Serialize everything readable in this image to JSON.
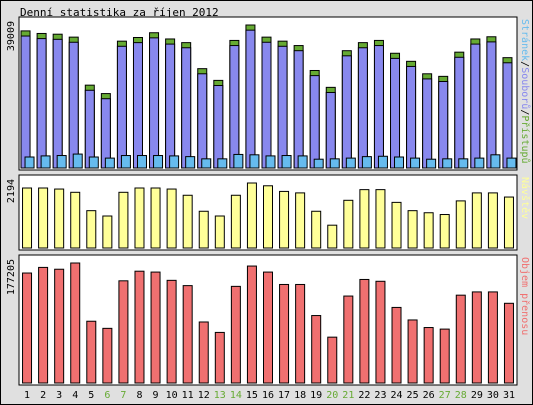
{
  "title": "Denní statistika za říjen 2012",
  "colors": {
    "pristupu": "#66aa33",
    "souboru": "#8888ee",
    "stranek": "#66bbee",
    "navstev": "#ffff99",
    "prenos": "#f07070",
    "weekend_label": "#66aa33",
    "weekday_label": "#000000"
  },
  "chart_data": [
    {
      "type": "bar",
      "panel": "hits",
      "ymax_label": "39009",
      "ylim": [
        0,
        39009
      ],
      "legend": [
        {
          "text": "Stránek",
          "color": "#66bbee"
        },
        {
          "text": "/",
          "color": "#000000"
        },
        {
          "text": "Souborů",
          "color": "#8888ee"
        },
        {
          "text": "/",
          "color": "#000000"
        },
        {
          "text": "Přístupů",
          "color": "#66aa33"
        }
      ],
      "categories": [
        "1",
        "2",
        "3",
        "4",
        "5",
        "6",
        "7",
        "8",
        "9",
        "10",
        "11",
        "12",
        "13",
        "14",
        "15",
        "16",
        "17",
        "18",
        "19",
        "20",
        "21",
        "22",
        "23",
        "24",
        "25",
        "26",
        "27",
        "28",
        "29",
        "30",
        "31"
      ],
      "weekend": [
        6,
        7,
        13,
        14,
        20,
        21,
        27,
        28
      ],
      "series": [
        {
          "key": "pristupu",
          "values": [
            37400,
            36700,
            36500,
            35700,
            22600,
            20300,
            34600,
            35600,
            36900,
            35200,
            34200,
            27100,
            23900,
            34800,
            39009,
            35700,
            34600,
            33400,
            26600,
            22000,
            32000,
            34200,
            34800,
            31300,
            29100,
            25700,
            25000,
            31600,
            35200,
            35800,
            30100
          ]
        },
        {
          "key": "souboru",
          "values": [
            36000,
            35300,
            35100,
            34300,
            21200,
            18900,
            33200,
            34200,
            35500,
            33800,
            32800,
            25700,
            22500,
            33400,
            37600,
            34300,
            33200,
            32000,
            25200,
            20600,
            30600,
            32800,
            33400,
            29900,
            27700,
            24300,
            23600,
            30200,
            33800,
            34400,
            28700
          ]
        },
        {
          "key": "stranek",
          "values": [
            3000,
            3300,
            3400,
            3800,
            3000,
            2700,
            3400,
            3400,
            3400,
            3300,
            3100,
            2500,
            2500,
            3700,
            3600,
            3300,
            3400,
            3300,
            2400,
            2500,
            2700,
            3100,
            3200,
            3000,
            2700,
            2400,
            2500,
            2500,
            2700,
            3600,
            2700
          ]
        }
      ]
    },
    {
      "type": "bar",
      "panel": "visits",
      "ymax_label": "2194",
      "ylim": [
        0,
        2194
      ],
      "legend": [
        {
          "text": "Návštěv",
          "color": "#ffff99"
        }
      ],
      "categories": [
        "1",
        "2",
        "3",
        "4",
        "5",
        "6",
        "7",
        "8",
        "9",
        "10",
        "11",
        "12",
        "13",
        "14",
        "15",
        "16",
        "17",
        "18",
        "19",
        "20",
        "21",
        "22",
        "23",
        "24",
        "25",
        "26",
        "27",
        "28",
        "29",
        "30",
        "31"
      ],
      "series": [
        {
          "key": "navstev",
          "values": [
            2025,
            2025,
            1990,
            1880,
            1260,
            1080,
            1880,
            2025,
            2025,
            1990,
            1780,
            1240,
            1080,
            1780,
            2194,
            2100,
            1910,
            1860,
            1240,
            770,
            1610,
            1970,
            1970,
            1540,
            1260,
            1190,
            1130,
            1590,
            1860,
            1860,
            1720
          ]
        }
      ]
    },
    {
      "type": "bar",
      "panel": "traffic",
      "ymax_label": "177205",
      "ylim": [
        0,
        177205
      ],
      "legend": [
        {
          "text": "Objem přenosu",
          "color": "#f07070"
        }
      ],
      "categories": [
        "1",
        "2",
        "3",
        "4",
        "5",
        "6",
        "7",
        "8",
        "9",
        "10",
        "11",
        "12",
        "13",
        "14",
        "15",
        "16",
        "17",
        "18",
        "19",
        "20",
        "21",
        "22",
        "23",
        "24",
        "25",
        "26",
        "27",
        "28",
        "29",
        "30",
        "31"
      ],
      "series": [
        {
          "key": "prenos",
          "values": [
            162400,
            170700,
            168000,
            177205,
            91200,
            80700,
            150900,
            165100,
            163800,
            151600,
            143800,
            90100,
            74700,
            142700,
            172700,
            163800,
            145500,
            145500,
            99600,
            67700,
            128400,
            152900,
            150200,
            111600,
            93100,
            81900,
            79600,
            129700,
            134500,
            134500,
            117700
          ]
        }
      ]
    }
  ]
}
